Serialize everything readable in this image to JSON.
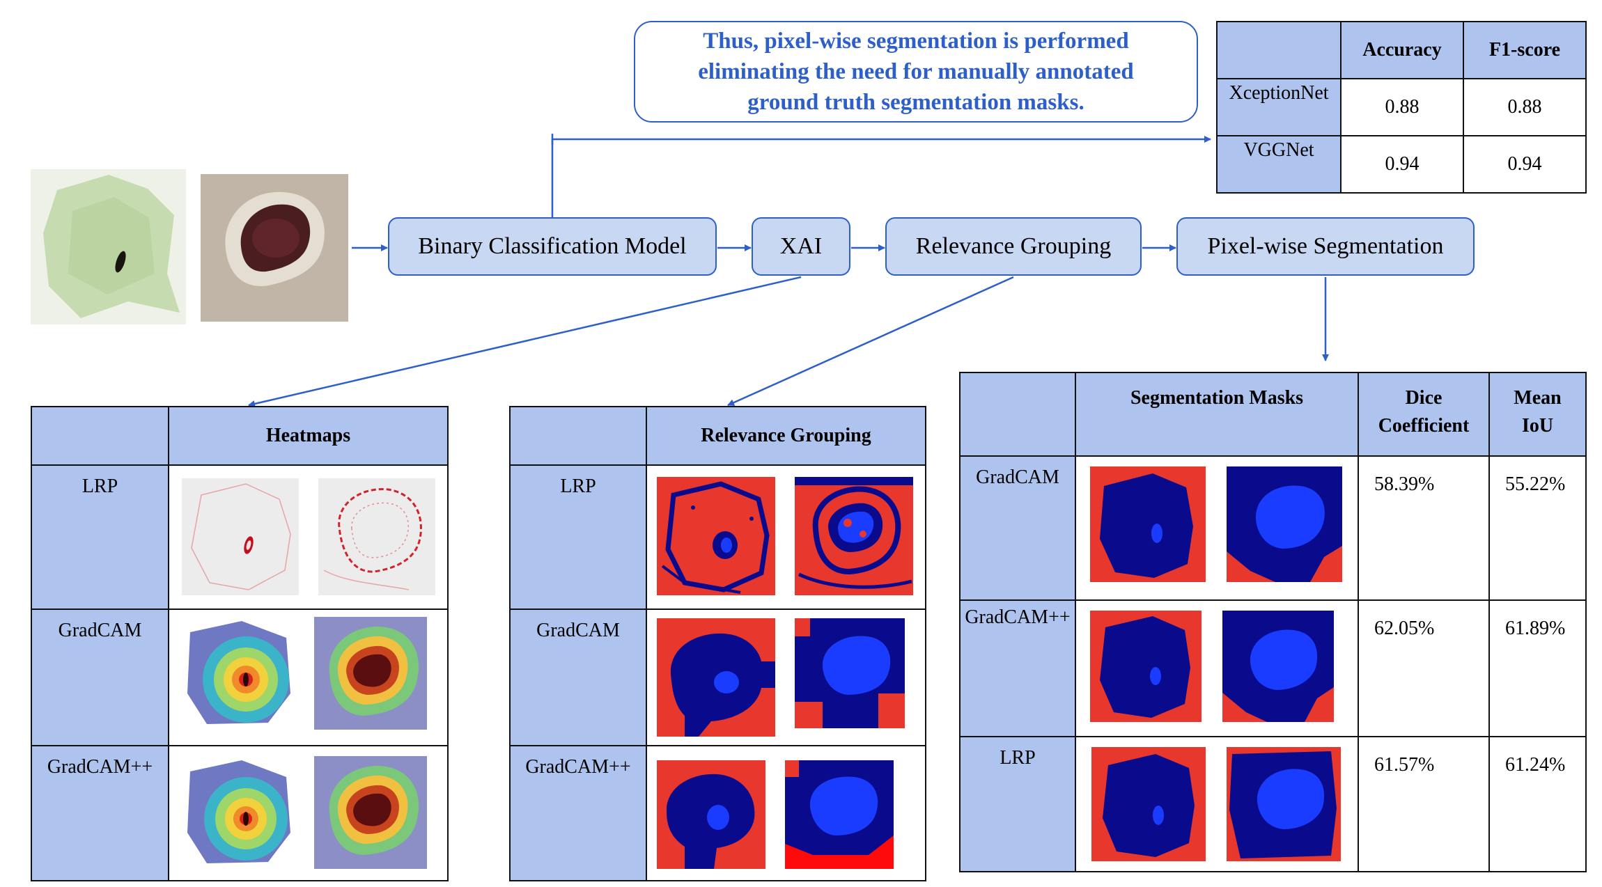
{
  "note": "Thus, pixel-wise segmentation is performed eliminating the need for manually annotated ground truth segmentation masks.",
  "pipeline": {
    "binary": "Binary Classification Model",
    "xai": "XAI",
    "relevance": "Relevance Grouping",
    "segmentation": "Pixel-wise Segmentation"
  },
  "results": {
    "headers": [
      "Accuracy",
      "F1-score"
    ],
    "rows": [
      {
        "model": "XceptionNet",
        "accuracy": "0.88",
        "f1": "0.88"
      },
      {
        "model": "VGGNet",
        "accuracy": "0.94",
        "f1": "0.94"
      }
    ]
  },
  "heatmaps": {
    "header": "Heatmaps",
    "rows": [
      "LRP",
      "GradCAM",
      "GradCAM++"
    ]
  },
  "grouping": {
    "header": "Relevance Grouping",
    "rows": [
      "LRP",
      "GradCAM",
      "GradCAM++"
    ]
  },
  "segmentation": {
    "headers": [
      "Segmentation Masks",
      "Dice Coefficient",
      "Mean IoU"
    ],
    "rows": [
      {
        "method": "GradCAM",
        "dice": "58.39%",
        "iou": "55.22%"
      },
      {
        "method": "GradCAM++",
        "dice": "62.05%",
        "iou": "61.89%"
      },
      {
        "method": "LRP",
        "dice": "61.57%",
        "iou": "61.24%"
      }
    ]
  },
  "colors": {
    "accent": "#2d5fc8",
    "box_fill": "#c8d8f3",
    "header_fill": "#aec4ee",
    "mask_red": "#e8372c",
    "mask_navy": "#0a0a8c",
    "mask_blue": "#1a3cff"
  }
}
